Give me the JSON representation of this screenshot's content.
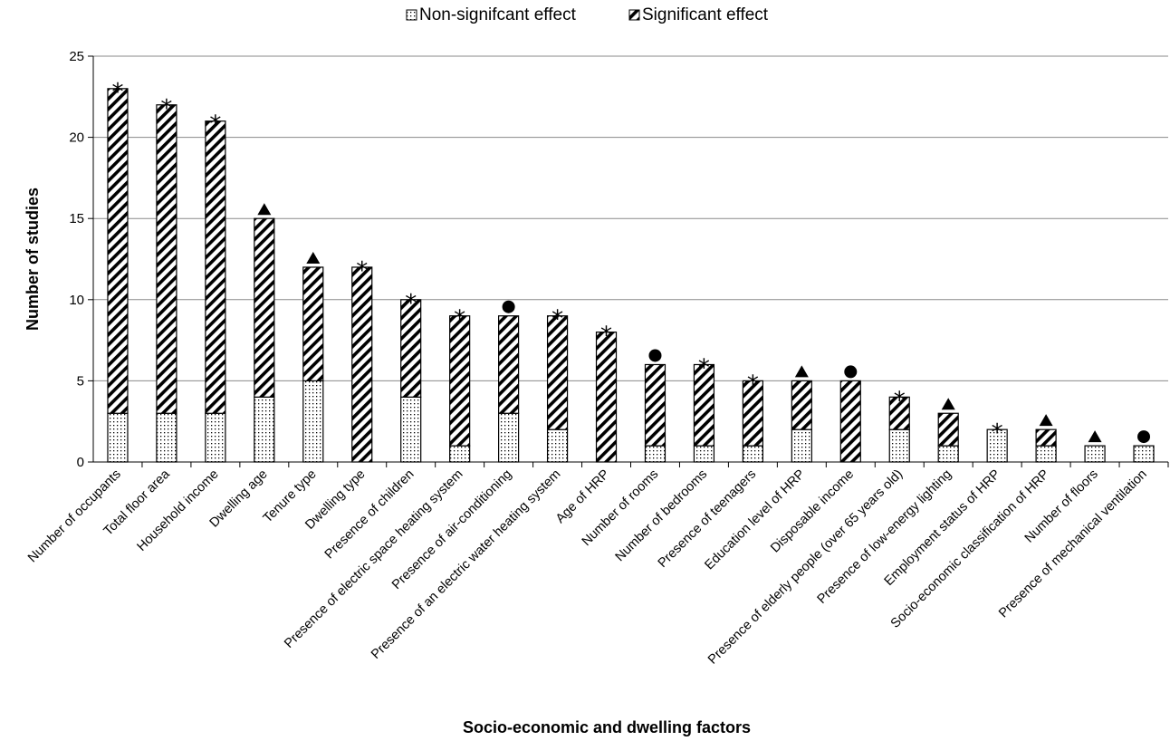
{
  "chart_data": {
    "type": "bar",
    "stacked": true,
    "title": "",
    "xlabel": "Socio-economic and dwelling factors",
    "ylabel": "Number of studies",
    "ylim": [
      0,
      25
    ],
    "yticks": [
      0,
      5,
      10,
      15,
      20,
      25
    ],
    "grid": true,
    "legend_position": "top-center",
    "categories": [
      "Number of occupants",
      "Total floor area",
      "Household income",
      "Dwelling age",
      "Tenure type",
      "Dwelling type",
      "Presence of children",
      "Presence of electric space heating system",
      "Presence of air-conditioning",
      "Presence of an electric water heating system",
      "Age of HRP",
      "Number of rooms",
      "Number of bedrooms",
      "Presence of teenagers",
      "Education level of HRP",
      "Disposable income",
      "Presence of elderly people (over 65 years old)",
      "Presence of low-energy lighting",
      "Employment status of HRP",
      "Socio-economic classification of HRP",
      "Number of floors",
      "Presence of mechanical ventilation"
    ],
    "series": [
      {
        "name": "Non-signifcant  effect",
        "pattern": "dotted",
        "values": [
          3,
          3,
          3,
          4,
          5,
          0,
          4,
          1,
          3,
          2,
          0,
          1,
          1,
          1,
          2,
          0,
          2,
          1,
          2,
          1,
          1,
          1
        ]
      },
      {
        "name": "Significant effect",
        "pattern": "diagonal-stripes",
        "values": [
          20,
          19,
          18,
          11,
          7,
          12,
          6,
          8,
          6,
          7,
          8,
          5,
          5,
          4,
          3,
          5,
          2,
          2,
          0,
          1,
          0,
          0
        ]
      }
    ],
    "markers": [
      "star",
      "star",
      "star",
      "triangle",
      "triangle",
      "star",
      "star",
      "star",
      "circle",
      "star",
      "star",
      "circle",
      "star",
      "star",
      "triangle",
      "circle",
      "star",
      "triangle",
      "star",
      "triangle",
      "triangle",
      "circle"
    ],
    "marker_glyphs": {
      "star": "*",
      "triangle": "▲",
      "circle": "●"
    }
  }
}
